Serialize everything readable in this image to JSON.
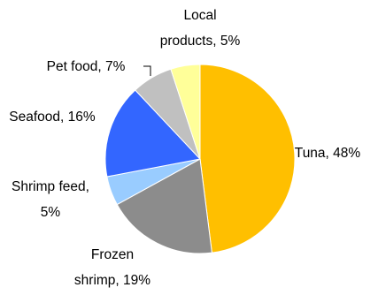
{
  "chart_data": {
    "type": "pie",
    "title": "",
    "slices": [
      {
        "name": "Tuna",
        "label": [
          "Tuna, 48%"
        ],
        "value": 48,
        "color": "#FFBF00"
      },
      {
        "name": "Frozen shrimp",
        "label": [
          "Frozen",
          "shrimp, 19%"
        ],
        "value": 19,
        "color": "#8C8C8C"
      },
      {
        "name": "Shrimp feed",
        "label": [
          "Shrimp feed,",
          "5%"
        ],
        "value": 5,
        "color": "#99CCFF"
      },
      {
        "name": "Seafood",
        "label": [
          "Seafood, 16%"
        ],
        "value": 16,
        "color": "#3366FF"
      },
      {
        "name": "Pet food",
        "label": [
          "Pet food, 7%"
        ],
        "value": 7,
        "color": "#C0C0C0"
      },
      {
        "name": "Local products",
        "label": [
          "Local",
          "products, 5%"
        ],
        "value": 5,
        "color": "#FFFF99"
      }
    ],
    "start": "12 o'clock",
    "direction": "clockwise",
    "legend": "none"
  }
}
